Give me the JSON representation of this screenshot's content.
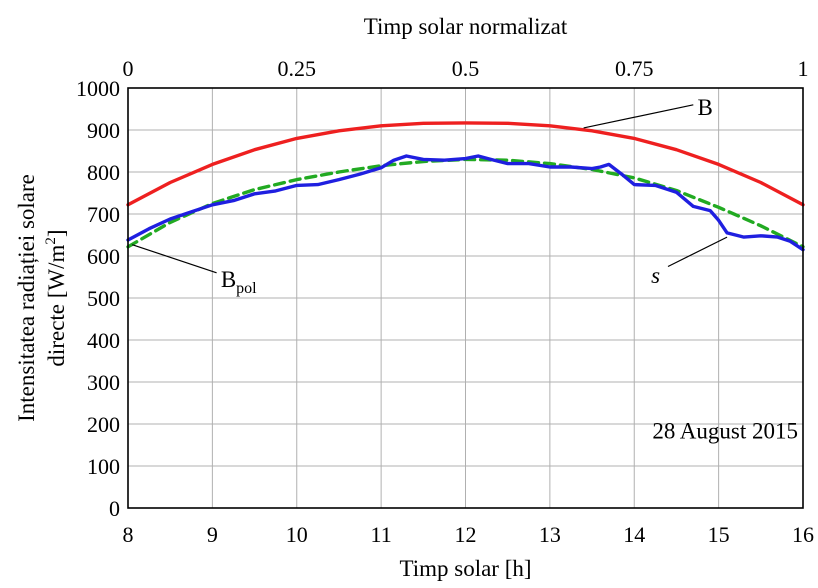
{
  "chart_data": {
    "type": "line",
    "title": "Timp solar normalizat",
    "xlabel": "Timp solar [h]",
    "ylabel_line1": "Intensitatea radiației solare",
    "ylabel_line2_prefix": "directe [W/m",
    "ylabel_line2_sup": "2",
    "ylabel_line2_suffix": "]",
    "xlim": [
      8,
      16
    ],
    "ylim": [
      0,
      1000
    ],
    "x_ticks": [
      8,
      9,
      10,
      11,
      12,
      13,
      14,
      15,
      16
    ],
    "y_ticks": [
      0,
      100,
      200,
      300,
      400,
      500,
      600,
      700,
      800,
      900,
      1000
    ],
    "x2_ticks": [
      "0",
      "0.25",
      "0.5",
      "0.75",
      "1"
    ],
    "x2_tick_positions": [
      8,
      10,
      12,
      14,
      16
    ],
    "grid": true,
    "annotation": "28 August 2015",
    "series": [
      {
        "name": "B",
        "color": "#ee2020",
        "style": "solid",
        "x": [
          8,
          8.5,
          9,
          9.5,
          10,
          10.5,
          11,
          11.5,
          12,
          12.5,
          13,
          13.5,
          14,
          14.5,
          15,
          15.5,
          16
        ],
        "y": [
          722,
          775,
          818,
          853,
          880,
          898,
          910,
          916,
          917,
          916,
          910,
          898,
          880,
          853,
          818,
          775,
          722
        ]
      },
      {
        "name": "B",
        "name_sub": "pol",
        "color": "#22aa22",
        "style": "dashed",
        "x": [
          8,
          8.5,
          9,
          9.5,
          10,
          10.5,
          11,
          11.5,
          12,
          12.5,
          13,
          13.5,
          14,
          14.5,
          15,
          15.5,
          16
        ],
        "y": [
          622,
          680,
          725,
          758,
          782,
          800,
          815,
          825,
          830,
          828,
          820,
          806,
          786,
          756,
          716,
          672,
          622
        ]
      },
      {
        "name": "s",
        "color": "#1f1fe0",
        "style": "solid",
        "x": [
          8,
          8.25,
          8.5,
          8.75,
          9,
          9.25,
          9.5,
          9.75,
          10,
          10.25,
          10.5,
          10.75,
          11,
          11.15,
          11.3,
          11.5,
          11.75,
          12,
          12.15,
          12.3,
          12.5,
          12.75,
          13,
          13.25,
          13.5,
          13.6,
          13.7,
          13.85,
          14,
          14.25,
          14.5,
          14.7,
          14.9,
          15,
          15.1,
          15.3,
          15.5,
          15.7,
          15.85,
          16
        ],
        "y": [
          638,
          665,
          688,
          705,
          722,
          732,
          748,
          755,
          768,
          770,
          782,
          795,
          810,
          828,
          838,
          830,
          828,
          832,
          838,
          830,
          820,
          820,
          812,
          812,
          808,
          812,
          818,
          795,
          770,
          768,
          752,
          718,
          708,
          685,
          655,
          645,
          648,
          645,
          635,
          615
        ]
      }
    ]
  }
}
